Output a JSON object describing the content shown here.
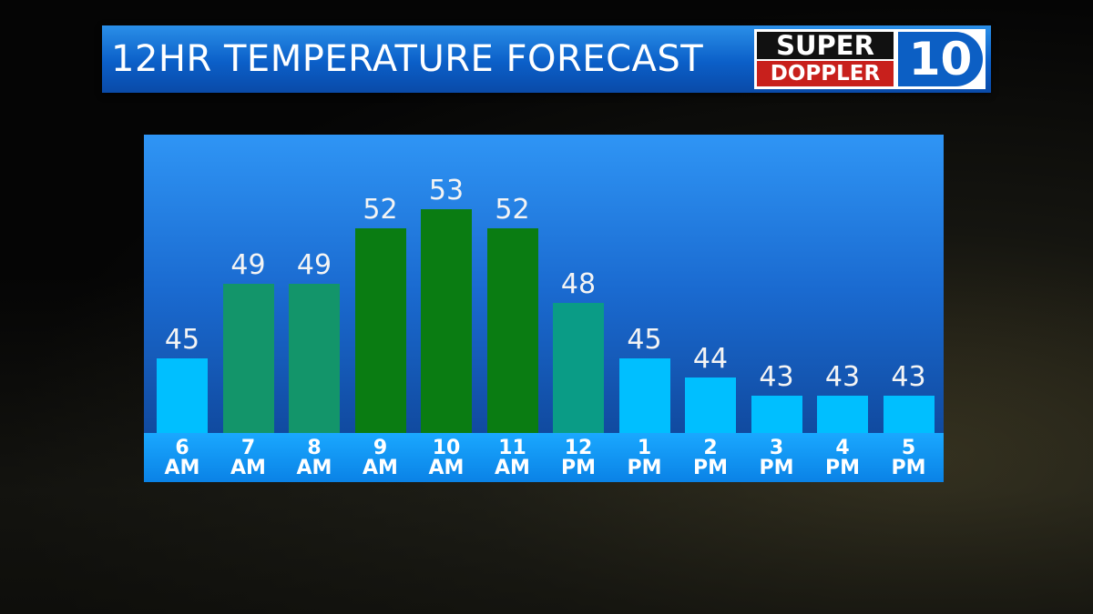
{
  "chart_data": {
    "type": "bar",
    "title": "12HR TEMPERATURE FORECAST",
    "categories": [
      "6 AM",
      "7 AM",
      "8 AM",
      "9 AM",
      "10 AM",
      "11 AM",
      "12 PM",
      "1 PM",
      "2 PM",
      "3 PM",
      "4 PM",
      "5 PM"
    ],
    "values": [
      45,
      49,
      49,
      52,
      53,
      52,
      48,
      45,
      44,
      43,
      43,
      43
    ],
    "colors": [
      "#00bfff",
      "#13956a",
      "#13956a",
      "#0a7c12",
      "#0a7c12",
      "#0a7c12",
      "#0a9c86",
      "#00bfff",
      "#00bfff",
      "#00bfff",
      "#00bfff",
      "#00bfff"
    ],
    "ylim": [
      41,
      57
    ]
  },
  "logo": {
    "line1": "SUPER",
    "line2": "DOPPLER",
    "number": "10"
  }
}
